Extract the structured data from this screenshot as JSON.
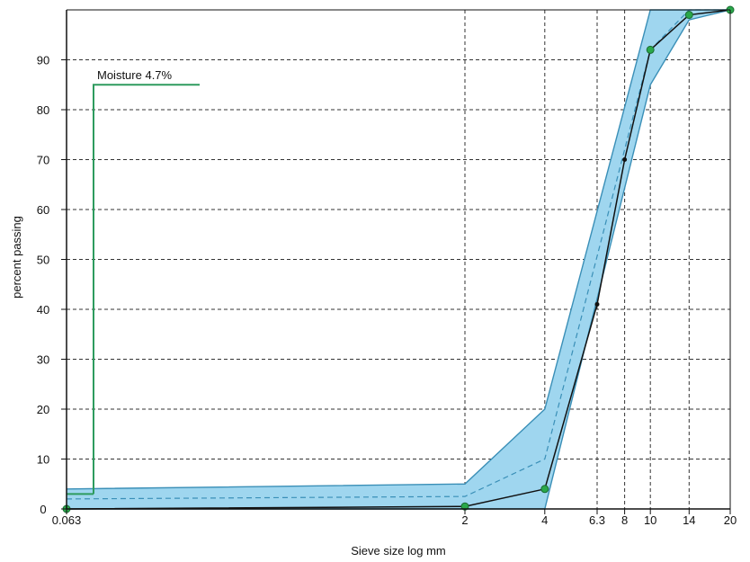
{
  "chart_data": {
    "type": "line",
    "xlabel": "Sieve size log mm",
    "ylabel": "percent passing",
    "x_scale": "log",
    "xlim": [
      0.063,
      20
    ],
    "ylim": [
      0,
      100
    ],
    "x_ticks": [
      {
        "value": 0.063,
        "label": "0.063"
      },
      {
        "value": 2,
        "label": "2"
      },
      {
        "value": 4,
        "label": "4"
      },
      {
        "value": 6.3,
        "label": "6.3"
      },
      {
        "value": 8,
        "label": "8"
      },
      {
        "value": 10,
        "label": "10"
      },
      {
        "value": 14,
        "label": "14"
      },
      {
        "value": 20,
        "label": "20"
      }
    ],
    "y_ticks": [
      0,
      10,
      20,
      30,
      40,
      50,
      60,
      70,
      80,
      90
    ],
    "grid": true,
    "colors": {
      "envelope_fill": "#9fd6ef",
      "envelope_edge": "#3a8fb7",
      "sample_line": "#111111",
      "midline": "#3a8fb7",
      "marker": "#2aa84a",
      "moisture_line": "#2e9b5e"
    },
    "envelope_upper": [
      [
        0.063,
        4
      ],
      [
        2,
        5
      ],
      [
        4,
        20
      ],
      [
        10,
        100
      ],
      [
        20,
        100
      ]
    ],
    "envelope_lower": [
      [
        0.063,
        0
      ],
      [
        2,
        0
      ],
      [
        4,
        0
      ],
      [
        10,
        85
      ],
      [
        14,
        98
      ],
      [
        20,
        100
      ]
    ],
    "midline": [
      [
        0.063,
        2
      ],
      [
        2,
        2.5
      ],
      [
        4,
        10
      ],
      [
        10,
        92
      ],
      [
        14,
        100
      ],
      [
        20,
        100
      ]
    ],
    "series": [
      {
        "x": [
          0.063,
          2,
          4,
          6.3,
          8,
          10,
          14,
          20
        ],
        "y": [
          0,
          0.5,
          4,
          41,
          70,
          92,
          99,
          100
        ]
      }
    ],
    "annotations": [
      {
        "text": "Moisture 4.7%"
      }
    ]
  }
}
